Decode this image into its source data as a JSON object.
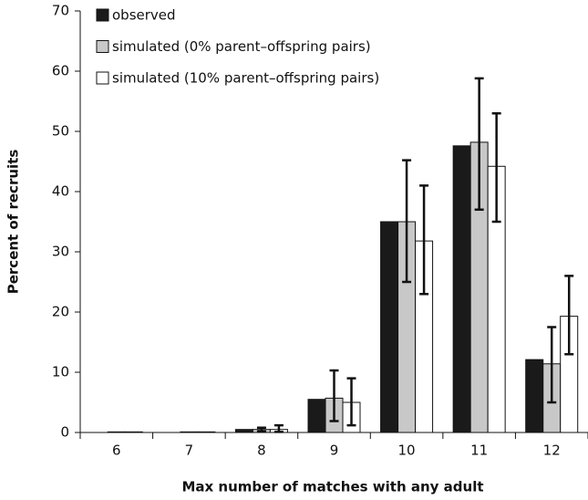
{
  "chart_data": {
    "type": "bar",
    "xlabel": "Max number of matches with any adult",
    "ylabel": "Percent of recruits",
    "categories": [
      "6",
      "7",
      "8",
      "9",
      "10",
      "11",
      "12"
    ],
    "ylim": [
      0,
      70
    ],
    "yticks": [
      0,
      10,
      20,
      30,
      40,
      50,
      60,
      70
    ],
    "legend": "top-left",
    "series": [
      {
        "name": "observed",
        "color": "#1a1a1a",
        "values": [
          0,
          0,
          0.5,
          5.5,
          35,
          47.6,
          12.1
        ]
      },
      {
        "name": "simulated (0% parent–offspring pairs)",
        "color": "#c8c8c8",
        "values": [
          0.1,
          0.1,
          0.5,
          5.7,
          35,
          48.2,
          11.4
        ],
        "lower": [
          null,
          null,
          0.2,
          1.9,
          25,
          37,
          5
        ],
        "upper": [
          null,
          null,
          0.8,
          10.3,
          45.2,
          58.8,
          17.5
        ]
      },
      {
        "name": "simulated (10% parent–offspring pairs)",
        "color": "#ffffff",
        "values": [
          0.1,
          0.1,
          0.5,
          5,
          31.8,
          44.2,
          19.3
        ],
        "lower": [
          null,
          null,
          0.1,
          1.2,
          23,
          35,
          13
        ],
        "upper": [
          null,
          null,
          1.2,
          9,
          41,
          53,
          26
        ]
      }
    ]
  }
}
